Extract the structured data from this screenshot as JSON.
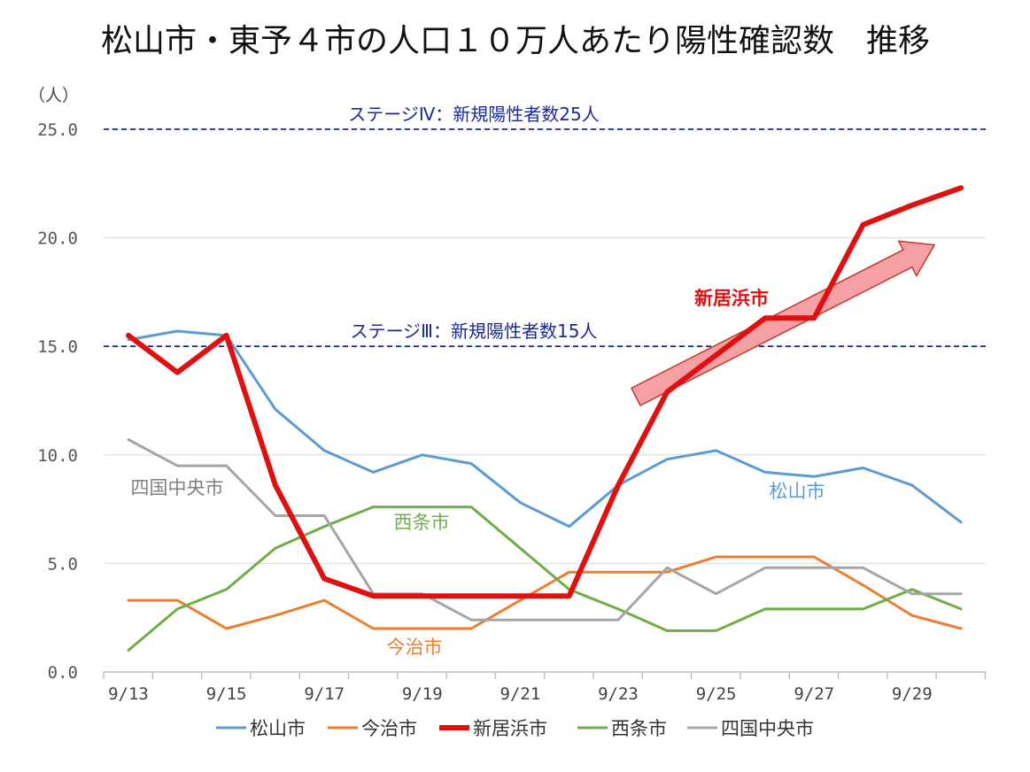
{
  "chart_data": {
    "type": "line",
    "title": "松山市・東予４市の人口１０万人あたり陽性確認数　推移",
    "ylabel": "（人）",
    "xlabel": "",
    "ylim": [
      0,
      25
    ],
    "y_ticks": [
      "0.0",
      "5.0",
      "10.0",
      "15.0",
      "20.0",
      "25.0"
    ],
    "x_tick_labels": [
      "9/13",
      "",
      "9/15",
      "",
      "9/17",
      "",
      "9/19",
      "",
      "9/21",
      "",
      "9/23",
      "",
      "9/25",
      "",
      "9/27",
      "",
      "9/29",
      ""
    ],
    "categories": [
      "9/13",
      "9/14",
      "9/15",
      "9/16",
      "9/17",
      "9/18",
      "9/19",
      "9/20",
      "9/21",
      "9/22",
      "9/23",
      "9/24",
      "9/25",
      "9/26",
      "9/27",
      "9/28",
      "9/29",
      "9/30"
    ],
    "grid": true,
    "legend_position": "bottom",
    "reference_lines": [
      {
        "y": 25,
        "label": "ステージⅣ：新規陽性者数25人",
        "color": "#1a2a99"
      },
      {
        "y": 15,
        "label": "ステージⅢ：新規陽性者数15人",
        "color": "#1a2a99"
      }
    ],
    "series": [
      {
        "name": "松山市",
        "color": "#5b9bd5",
        "width": 3,
        "values": [
          15.3,
          15.7,
          15.5,
          12.1,
          10.2,
          9.2,
          10.0,
          9.6,
          7.8,
          6.7,
          8.6,
          9.8,
          10.2,
          9.2,
          9.0,
          9.4,
          8.6,
          6.9
        ],
        "label": "松山市"
      },
      {
        "name": "今治市",
        "color": "#ed7d31",
        "width": 3,
        "values": [
          3.3,
          3.3,
          2.0,
          2.6,
          3.3,
          2.0,
          2.0,
          2.0,
          3.3,
          4.6,
          4.6,
          4.6,
          5.3,
          5.3,
          5.3,
          4.0,
          2.6,
          2.0
        ],
        "label": "今治市"
      },
      {
        "name": "新居浜市",
        "color": "#e01010",
        "width": 6,
        "values": [
          15.5,
          13.8,
          15.5,
          8.6,
          4.3,
          3.5,
          3.5,
          3.5,
          3.5,
          3.5,
          8.6,
          12.9,
          14.6,
          16.3,
          16.3,
          20.6,
          21.5,
          22.3
        ],
        "label": "新居浜市"
      },
      {
        "name": "西条市",
        "color": "#70ad47",
        "width": 3,
        "values": [
          1.0,
          2.9,
          3.8,
          5.7,
          6.7,
          7.6,
          7.6,
          7.6,
          5.7,
          3.8,
          2.9,
          1.9,
          1.9,
          2.9,
          2.9,
          2.9,
          3.8,
          2.9
        ],
        "label": "西条市"
      },
      {
        "name": "四国中央市",
        "color": "#a5a5a5",
        "width": 3,
        "values": [
          10.7,
          9.5,
          9.5,
          7.2,
          7.2,
          3.6,
          3.6,
          2.4,
          2.4,
          2.4,
          2.4,
          4.8,
          3.6,
          4.8,
          4.8,
          4.8,
          3.6,
          3.6
        ],
        "label": "四国中央市"
      }
    ],
    "annotations": [
      {
        "type": "arrow",
        "from": [
          "9/23",
          13
        ],
        "to": [
          "9/30",
          20
        ],
        "color": "#f4a0a4",
        "note": "upward trend"
      }
    ]
  }
}
